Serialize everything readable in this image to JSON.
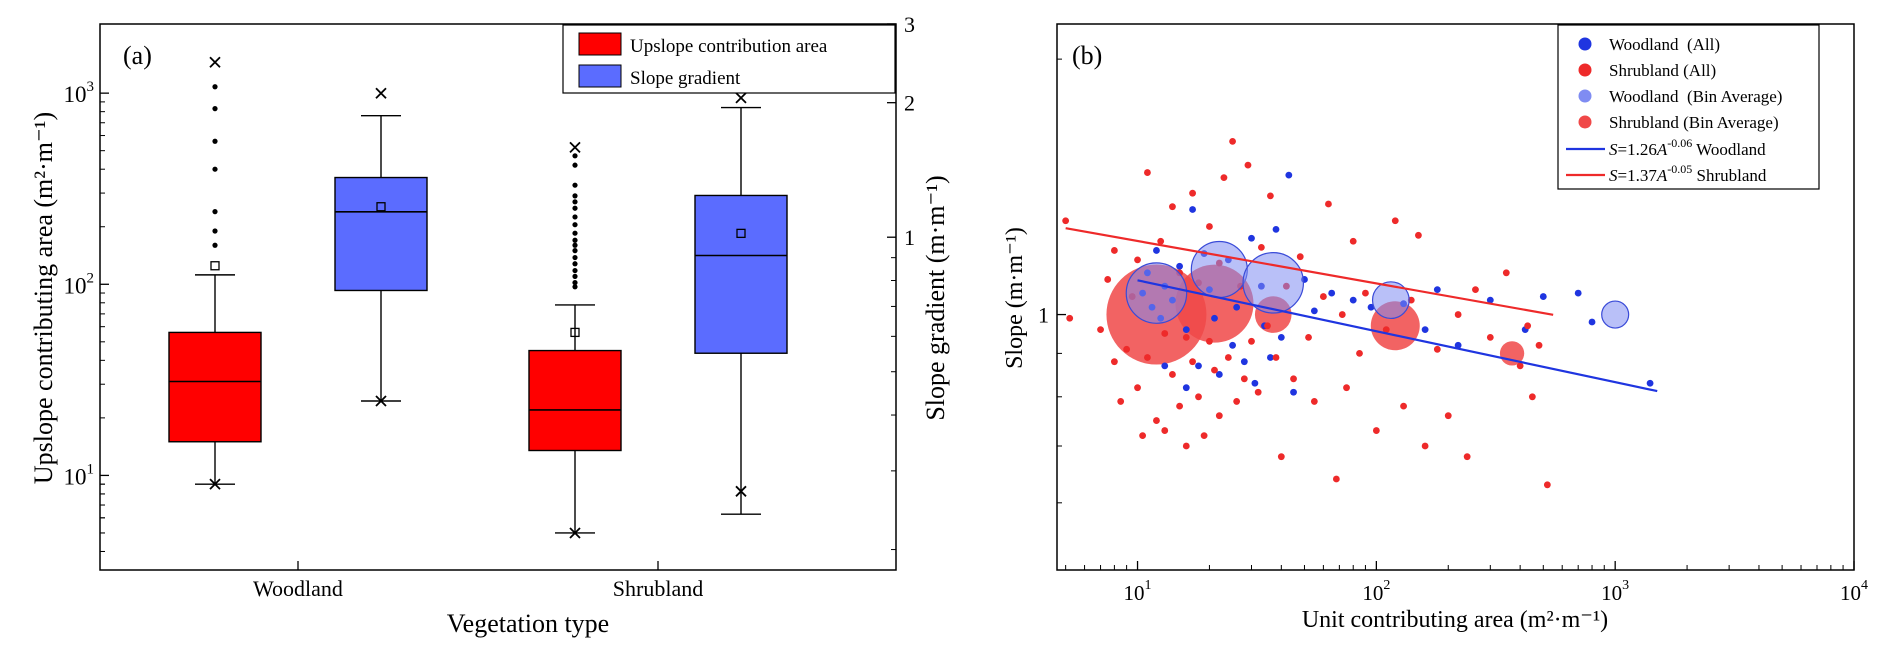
{
  "chart_data": [
    {
      "type": "box",
      "panel_label": "(a)",
      "xlabel": "Vegetation type",
      "ylabel_left": "Upslope contributing area (m²·m⁻¹)",
      "ylabel_right": "Slope gradient (m·m⁻¹)",
      "y_left_scale": "log",
      "y_left_lim": [
        3.2,
        2300
      ],
      "y_left_ticks": [
        {
          "v": 10,
          "b": "10",
          "e": "1"
        },
        {
          "v": 100,
          "b": "10",
          "e": "2"
        },
        {
          "v": 1000,
          "b": "10",
          "e": "3"
        }
      ],
      "y_right_scale": "log",
      "y_right_lim": [
        0.18,
        3.0
      ],
      "y_right_ticks": [
        {
          "v": 1,
          "label": "1"
        },
        {
          "v": 2,
          "label": "2"
        },
        {
          "v": 3,
          "label": "3"
        }
      ],
      "categories": [
        "Woodland",
        "Shrubland"
      ],
      "legend": [
        {
          "label": "Upslope contribution area",
          "color": "#ff0000"
        },
        {
          "label": "Slope gradient",
          "color": "#5b6cff"
        }
      ],
      "legend_position": "top-right",
      "boxes": [
        {
          "category": "Woodland",
          "series": "Upslope contribution area",
          "axis": "left",
          "whisker_low": 9,
          "q1": 15,
          "median": 31,
          "q3": 56,
          "whisker_high": 112,
          "mean": 125,
          "min_mark": 9,
          "max_mark": 1450,
          "outliers": [
            1080,
            830,
            560,
            400,
            240,
            190,
            160
          ]
        },
        {
          "category": "Woodland",
          "series": "Slope gradient",
          "axis": "right",
          "whisker_low": 0.43,
          "q1": 0.76,
          "median": 1.14,
          "q3": 1.36,
          "whisker_high": 1.87,
          "mean": 1.17,
          "min_mark": 0.43,
          "max_mark": 2.1,
          "outliers": []
        },
        {
          "category": "Shrubland",
          "series": "Upslope contribution area",
          "axis": "left",
          "whisker_low": 5,
          "q1": 13.5,
          "median": 22,
          "q3": 45,
          "whisker_high": 78,
          "mean": 56,
          "min_mark": 5,
          "max_mark": 520,
          "outliers": [
            470,
            420,
            330,
            290,
            270,
            250,
            225,
            205,
            185,
            170,
            160,
            150,
            138,
            128,
            118,
            110,
            102,
            97
          ]
        },
        {
          "category": "Shrubland",
          "series": "Slope gradient",
          "axis": "right",
          "whisker_low": 0.24,
          "q1": 0.55,
          "median": 0.91,
          "q3": 1.24,
          "whisker_high": 1.95,
          "mean": 1.02,
          "min_mark": 0.27,
          "max_mark": 2.05,
          "outliers": []
        }
      ]
    },
    {
      "type": "scatter",
      "panel_label": "(b)",
      "xlabel": "Unit contributing area (m²·m⁻¹)",
      "ylabel": "Slope (m·m⁻¹)",
      "x_scale": "log",
      "y_scale": "log",
      "xlim": [
        4.6,
        10000
      ],
      "ylim": [
        0.5,
        2.2
      ],
      "x_ticks": [
        {
          "v": 10,
          "b": "10",
          "e": "1"
        },
        {
          "v": 100,
          "b": "10",
          "e": "2"
        },
        {
          "v": 1000,
          "b": "10",
          "e": "3"
        },
        {
          "v": 10000,
          "b": "10",
          "e": "4"
        }
      ],
      "y_ticks": [
        {
          "v": 1,
          "label": "1"
        }
      ],
      "legend_position": "top-right",
      "legend": [
        {
          "label": "Woodland  (All)",
          "kind": "dot",
          "color": "#1f35e0"
        },
        {
          "label": "Shrubland (All)",
          "kind": "dot",
          "color": "#ee2a2a"
        },
        {
          "label": "Woodland  (Bin Average)",
          "kind": "dot",
          "color": "#7f8cf2"
        },
        {
          "label": "Shrubland (Bin Average)",
          "kind": "dot",
          "color": "#f04848"
        },
        {
          "pre": "S",
          "mid": "=1.26",
          "a": "A",
          "exp": "-0.06",
          "post": " Woodland",
          "kind": "line",
          "color": "#1f35e0"
        },
        {
          "pre": "S",
          "mid": "=1.37",
          "a": "A",
          "exp": "-0.05",
          "post": " Shrubland",
          "kind": "line",
          "color": "#ee2a2a"
        }
      ],
      "fit_lines": [
        {
          "name": "Woodland",
          "a": 1.26,
          "b": -0.06,
          "x_range": [
            10,
            1500
          ],
          "color": "#1f35e0"
        },
        {
          "name": "Shrubland",
          "a": 1.37,
          "b": -0.05,
          "x_range": [
            5,
            550
          ],
          "color": "#ee2a2a"
        }
      ],
      "bin_averages": [
        {
          "series": "Shrubland",
          "x": 12,
          "y": 1.0,
          "size": 1.0
        },
        {
          "series": "Shrubland",
          "x": 21,
          "y": 1.03,
          "size": 0.75
        },
        {
          "series": "Shrubland",
          "x": 37,
          "y": 1.0,
          "size": 0.28
        },
        {
          "series": "Shrubland",
          "x": 120,
          "y": 0.97,
          "size": 0.42
        },
        {
          "series": "Shrubland",
          "x": 370,
          "y": 0.9,
          "size": 0.14
        },
        {
          "series": "Woodland",
          "x": 12,
          "y": 1.06,
          "size": 0.55
        },
        {
          "series": "Woodland",
          "x": 22,
          "y": 1.13,
          "size": 0.5
        },
        {
          "series": "Woodland",
          "x": 37,
          "y": 1.09,
          "size": 0.55
        },
        {
          "series": "Woodland",
          "x": 115,
          "y": 1.04,
          "size": 0.28
        },
        {
          "series": "Woodland",
          "x": 1000,
          "y": 1.0,
          "size": 0.17
        }
      ],
      "series": [
        {
          "name": "Woodland (All)",
          "color": "#1f35e0",
          "points": [
            [
              10.5,
              1.06
            ],
            [
              11,
              1.12
            ],
            [
              11.5,
              1.02
            ],
            [
              12,
              1.19
            ],
            [
              12.5,
              0.99
            ],
            [
              13,
              1.08
            ],
            [
              14,
              1.04
            ],
            [
              15,
              1.14
            ],
            [
              16,
              0.96
            ],
            [
              17,
              1.33
            ],
            [
              18,
              0.87
            ],
            [
              19,
              1.18
            ],
            [
              20,
              1.07
            ],
            [
              21,
              0.99
            ],
            [
              22,
              0.85
            ],
            [
              24,
              1.16
            ],
            [
              25,
              0.92
            ],
            [
              26,
              1.02
            ],
            [
              28,
              0.88
            ],
            [
              30,
              1.23
            ],
            [
              31,
              0.83
            ],
            [
              33,
              1.08
            ],
            [
              34,
              0.97
            ],
            [
              36,
              0.89
            ],
            [
              38,
              1.26
            ],
            [
              40,
              0.94
            ],
            [
              43,
              1.46
            ],
            [
              45,
              0.81
            ],
            [
              50,
              1.1
            ],
            [
              55,
              1.01
            ],
            [
              65,
              1.06
            ],
            [
              80,
              1.04
            ],
            [
              95,
              1.02
            ],
            [
              130,
              1.03
            ],
            [
              160,
              0.96
            ],
            [
              180,
              1.07
            ],
            [
              220,
              0.92
            ],
            [
              300,
              1.04
            ],
            [
              420,
              0.96
            ],
            [
              500,
              1.05
            ],
            [
              700,
              1.06
            ],
            [
              800,
              0.98
            ],
            [
              1400,
              0.83
            ],
            [
              13,
              0.87
            ],
            [
              16,
              0.82
            ]
          ]
        },
        {
          "name": "Shrubland (All)",
          "color": "#ee2a2a",
          "points": [
            [
              5,
              1.29
            ],
            [
              5.2,
              0.99
            ],
            [
              7,
              0.96
            ],
            [
              7.5,
              1.1
            ],
            [
              8,
              1.19
            ],
            [
              8,
              0.88
            ],
            [
              8.5,
              0.79
            ],
            [
              9,
              0.91
            ],
            [
              9.5,
              1.05
            ],
            [
              10,
              0.82
            ],
            [
              10,
              1.16
            ],
            [
              10.5,
              0.72
            ],
            [
              11,
              1.47
            ],
            [
              11,
              0.89
            ],
            [
              12,
              0.75
            ],
            [
              12.5,
              1.22
            ],
            [
              13,
              0.95
            ],
            [
              13,
              0.73
            ],
            [
              14,
              1.34
            ],
            [
              14,
              0.85
            ],
            [
              15,
              1.12
            ],
            [
              15,
              0.78
            ],
            [
              16,
              0.94
            ],
            [
              16,
              0.7
            ],
            [
              17,
              1.39
            ],
            [
              17,
              0.88
            ],
            [
              18,
              1.09
            ],
            [
              18,
              0.8
            ],
            [
              19,
              0.72
            ],
            [
              20,
              1.27
            ],
            [
              20,
              0.93
            ],
            [
              21,
              0.86
            ],
            [
              22,
              1.15
            ],
            [
              22,
              0.76
            ],
            [
              23,
              1.45
            ],
            [
              24,
              0.89
            ],
            [
              25,
              1.6
            ],
            [
              26,
              0.79
            ],
            [
              27,
              1.08
            ],
            [
              28,
              0.84
            ],
            [
              29,
              1.5
            ],
            [
              30,
              0.93
            ],
            [
              32,
              0.81
            ],
            [
              33,
              1.2
            ],
            [
              35,
              0.97
            ],
            [
              36,
              1.38
            ],
            [
              38,
              0.89
            ],
            [
              40,
              0.68
            ],
            [
              42,
              1.08
            ],
            [
              45,
              0.84
            ],
            [
              48,
              1.17
            ],
            [
              52,
              0.94
            ],
            [
              55,
              0.79
            ],
            [
              60,
              1.05
            ],
            [
              63,
              1.35
            ],
            [
              68,
              0.64
            ],
            [
              72,
              1.0
            ],
            [
              75,
              0.82
            ],
            [
              80,
              1.22
            ],
            [
              85,
              0.9
            ],
            [
              90,
              1.06
            ],
            [
              100,
              0.73
            ],
            [
              110,
              0.96
            ],
            [
              120,
              1.29
            ],
            [
              130,
              0.78
            ],
            [
              140,
              1.04
            ],
            [
              150,
              1.24
            ],
            [
              160,
              0.7
            ],
            [
              180,
              0.91
            ],
            [
              200,
              0.76
            ],
            [
              220,
              1.0
            ],
            [
              240,
              0.68
            ],
            [
              260,
              1.07
            ],
            [
              300,
              0.94
            ],
            [
              350,
              1.12
            ],
            [
              400,
              0.87
            ],
            [
              430,
              0.97
            ],
            [
              450,
              0.8
            ],
            [
              480,
              0.92
            ],
            [
              520,
              0.63
            ]
          ]
        }
      ]
    }
  ]
}
